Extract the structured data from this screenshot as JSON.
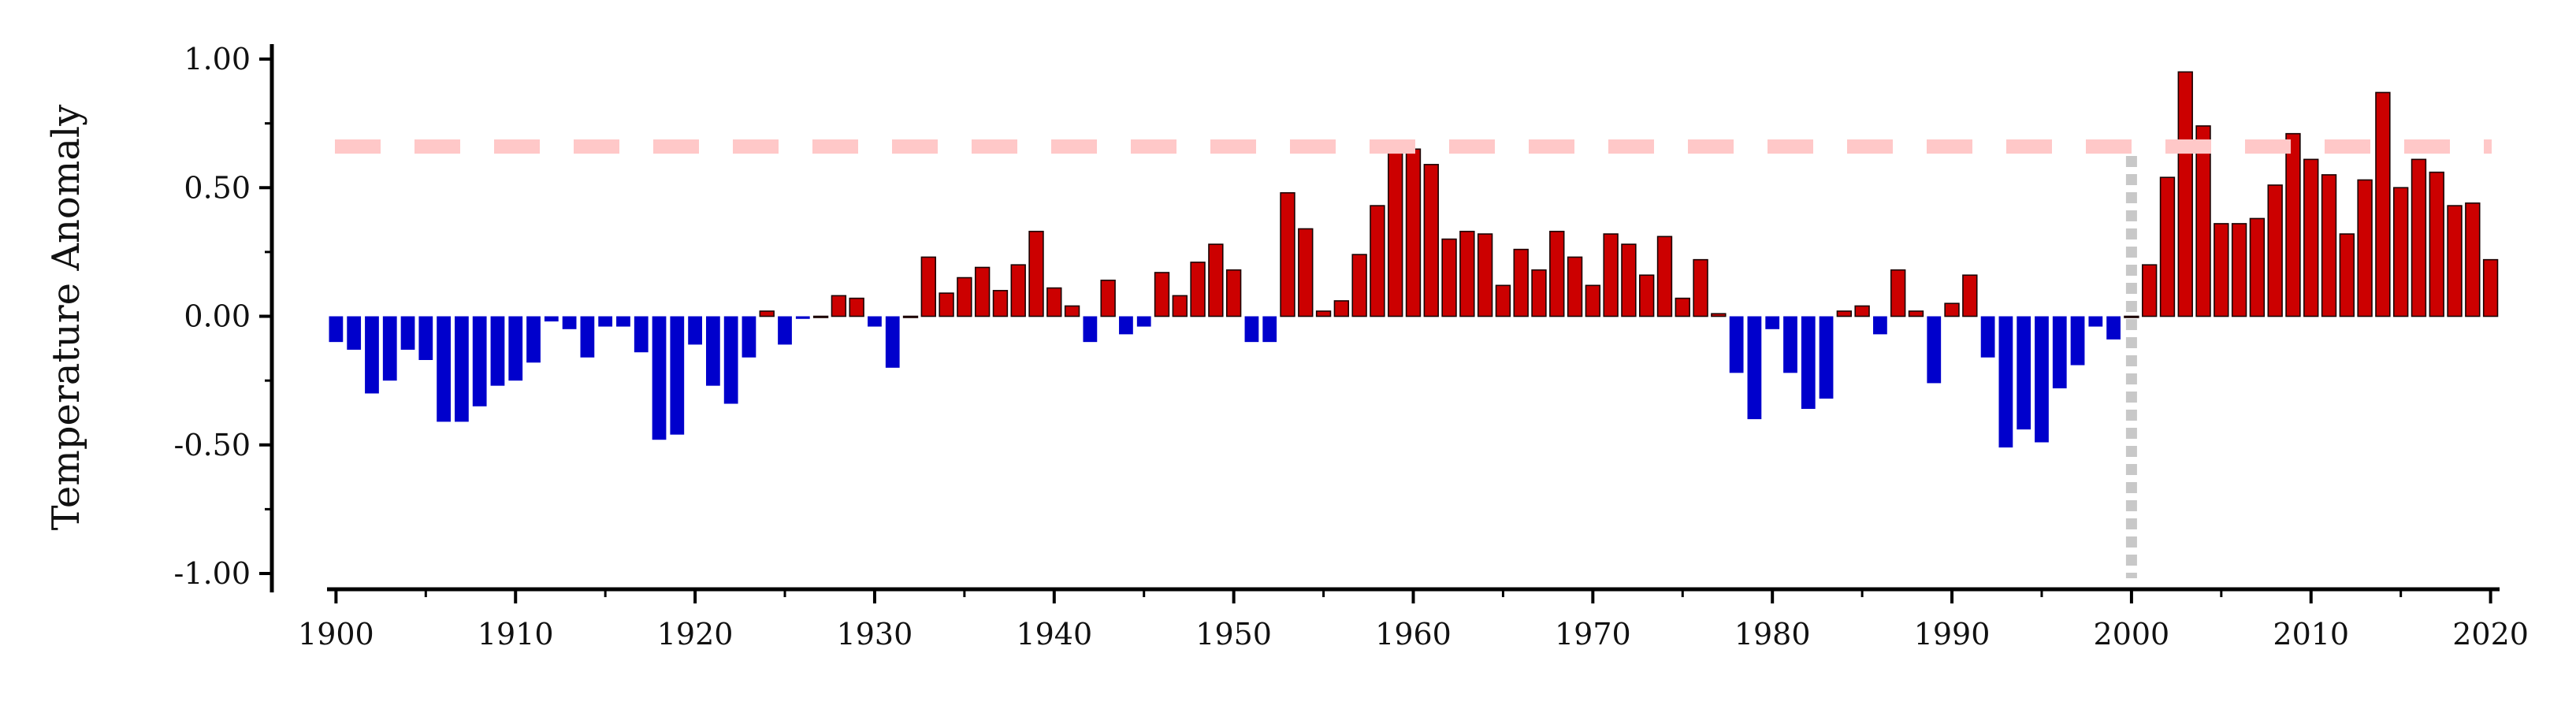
{
  "chart_data": {
    "type": "bar",
    "ylabel": "Temperature Anomaly",
    "xlim": [
      1899.5,
      2020.5
    ],
    "ylim": [
      -1.05,
      1.05
    ],
    "x_ticks": [
      1900,
      1910,
      1920,
      1930,
      1940,
      1950,
      1960,
      1970,
      1980,
      1990,
      2000,
      2010,
      2020
    ],
    "x_tick_labels": [
      "1900",
      "1910",
      "1920",
      "1930",
      "1940",
      "1950",
      "1960",
      "1970",
      "1980",
      "1990",
      "2000",
      "2010",
      "2020"
    ],
    "y_ticks": [
      1.0,
      0.5,
      0.0,
      -0.5,
      -1.0
    ],
    "y_tick_labels": [
      "1.00",
      "0.50",
      "0.00",
      "-0.50",
      "-1.00"
    ],
    "reference_line_y": 0.66,
    "reference_line_x": 2000,
    "colors": {
      "positive": "#cc0000",
      "negative": "#0000cc",
      "reference_line": "#ffc8c8",
      "vertical_marker": "#c8c8c8",
      "axis": "#000000"
    },
    "x": [
      1900,
      1901,
      1902,
      1903,
      1904,
      1905,
      1906,
      1907,
      1908,
      1909,
      1910,
      1911,
      1912,
      1913,
      1914,
      1915,
      1916,
      1917,
      1918,
      1919,
      1920,
      1921,
      1922,
      1923,
      1924,
      1925,
      1926,
      1927,
      1928,
      1929,
      1930,
      1931,
      1932,
      1933,
      1934,
      1935,
      1936,
      1937,
      1938,
      1939,
      1940,
      1941,
      1942,
      1943,
      1944,
      1945,
      1946,
      1947,
      1948,
      1949,
      1950,
      1951,
      1952,
      1953,
      1954,
      1955,
      1956,
      1957,
      1958,
      1959,
      1960,
      1961,
      1962,
      1963,
      1964,
      1965,
      1966,
      1967,
      1968,
      1969,
      1970,
      1971,
      1972,
      1973,
      1974,
      1975,
      1976,
      1977,
      1978,
      1979,
      1980,
      1981,
      1982,
      1983,
      1984,
      1985,
      1986,
      1987,
      1988,
      1989,
      1990,
      1991,
      1992,
      1993,
      1994,
      1995,
      1996,
      1997,
      1998,
      1999,
      2000,
      2001,
      2002,
      2003,
      2004,
      2005,
      2006,
      2007,
      2008,
      2009,
      2010,
      2011,
      2012,
      2013,
      2014,
      2015,
      2016,
      2017,
      2018,
      2019,
      2020
    ],
    "values": [
      -0.1,
      -0.13,
      -0.3,
      -0.25,
      -0.13,
      -0.17,
      -0.41,
      -0.41,
      -0.35,
      -0.27,
      -0.25,
      -0.18,
      -0.02,
      -0.05,
      -0.16,
      -0.04,
      -0.04,
      -0.14,
      -0.48,
      -0.46,
      -0.11,
      -0.27,
      -0.34,
      -0.16,
      0.02,
      -0.11,
      -0.01,
      0.0,
      0.08,
      0.07,
      -0.04,
      -0.2,
      0.0,
      0.23,
      0.09,
      0.15,
      0.19,
      0.1,
      0.2,
      0.33,
      0.11,
      0.04,
      -0.1,
      0.14,
      -0.07,
      -0.04,
      0.17,
      0.08,
      0.21,
      0.28,
      0.18,
      -0.1,
      -0.1,
      0.48,
      0.34,
      0.02,
      0.06,
      0.24,
      0.43,
      0.66,
      0.65,
      0.59,
      0.3,
      0.33,
      0.32,
      0.12,
      0.26,
      0.18,
      0.33,
      0.23,
      0.12,
      0.32,
      0.28,
      0.16,
      0.31,
      0.07,
      0.22,
      0.01,
      -0.22,
      -0.4,
      -0.05,
      -0.22,
      -0.36,
      -0.32,
      0.02,
      0.04,
      -0.07,
      0.18,
      0.02,
      -0.26,
      0.05,
      0.16,
      -0.16,
      -0.51,
      -0.44,
      -0.49,
      -0.28,
      -0.19,
      -0.04,
      -0.09,
      0.0,
      0.2,
      0.54,
      0.95,
      0.74,
      0.36,
      0.36,
      0.38,
      0.51,
      0.71,
      0.61,
      0.55,
      0.32,
      0.53,
      0.87,
      0.5,
      0.61,
      0.56,
      0.43,
      0.44,
      0.22
    ]
  }
}
